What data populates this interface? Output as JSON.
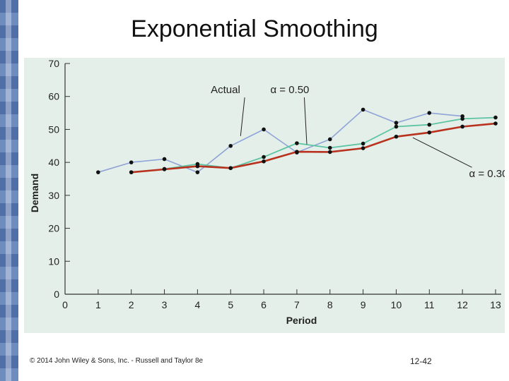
{
  "slide": {
    "title": "Exponential Smoothing",
    "footer_left": "© 2014 John Wiley & Sons, Inc. - Russell and Taylor 8e",
    "footer_right": "12-42"
  },
  "colors": {
    "actual": "#8fa3d6",
    "alpha50": "#5cc3a3",
    "alpha30": "#b8321e",
    "panel": "#e4efea",
    "band": "#4f6fa6"
  },
  "chart_data": {
    "type": "line",
    "xlabel": "Period",
    "ylabel": "Demand",
    "xlim": [
      0,
      13
    ],
    "ylim": [
      0,
      70
    ],
    "xticks": [
      0,
      1,
      2,
      3,
      4,
      5,
      6,
      7,
      8,
      9,
      10,
      11,
      12,
      13
    ],
    "yticks": [
      0,
      10,
      20,
      30,
      40,
      50,
      60,
      70
    ],
    "series": [
      {
        "name": "Actual",
        "key": "actual",
        "x": [
          1,
          2,
          3,
          4,
          5,
          6,
          7,
          8,
          9,
          10,
          11,
          12
        ],
        "values": [
          37,
          40,
          41,
          37,
          45,
          50,
          43,
          47,
          56,
          52,
          55,
          54
        ]
      },
      {
        "name": "α = 0.50",
        "key": "alpha50",
        "x": [
          2,
          3,
          4,
          5,
          6,
          7,
          8,
          9,
          10,
          11,
          12,
          13
        ],
        "values": [
          37,
          38,
          39.5,
          38.25,
          41.63,
          45.81,
          44.41,
          45.7,
          50.85,
          51.43,
          53.21,
          53.61
        ]
      },
      {
        "name": "α = 0.30",
        "key": "alpha30",
        "x": [
          2,
          3,
          4,
          5,
          6,
          7,
          8,
          9,
          10,
          11,
          12,
          13
        ],
        "values": [
          37,
          37.9,
          38.83,
          38.28,
          40.3,
          43.21,
          43.15,
          44.3,
          47.81,
          49.07,
          50.85,
          51.79
        ]
      }
    ],
    "annotations": [
      {
        "text": "Actual",
        "series": "actual",
        "label_at": [
          4.4,
          61
        ],
        "point_to": [
          5.3,
          48
        ]
      },
      {
        "text": "α = 0.50",
        "series": "alpha50",
        "label_at": [
          6.2,
          61
        ],
        "point_to": [
          7.3,
          45.5
        ]
      },
      {
        "text": "α = 0.30",
        "series": "alpha30",
        "label_at": [
          12.2,
          35.5
        ],
        "point_to": [
          10.5,
          47.5
        ]
      }
    ]
  }
}
